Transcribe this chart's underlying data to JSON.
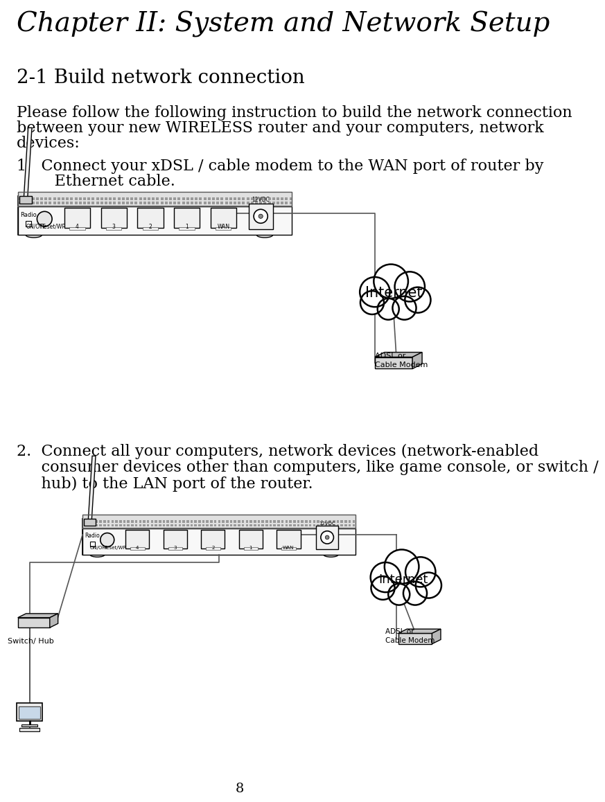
{
  "title": "Chapter II: System and Network Setup",
  "section": "2-1 Build network connection",
  "intro_lines": [
    "Please follow the following instruction to build the network connection",
    "between your new WIRELESS router and your computers, network",
    "devices:"
  ],
  "item1_line1": "1.  Connect your xDSL / cable modem to the WAN port of router by",
  "item1_line2": "     Ethernet cable.",
  "item2_lines": [
    "2.  Connect all your computers, network devices (network-enabled",
    "     consumer devices other than computers, like game console, or switch /",
    "     hub) to the LAN port of the router."
  ],
  "page_number": "8",
  "bg_color": "#ffffff",
  "text_color": "#000000"
}
